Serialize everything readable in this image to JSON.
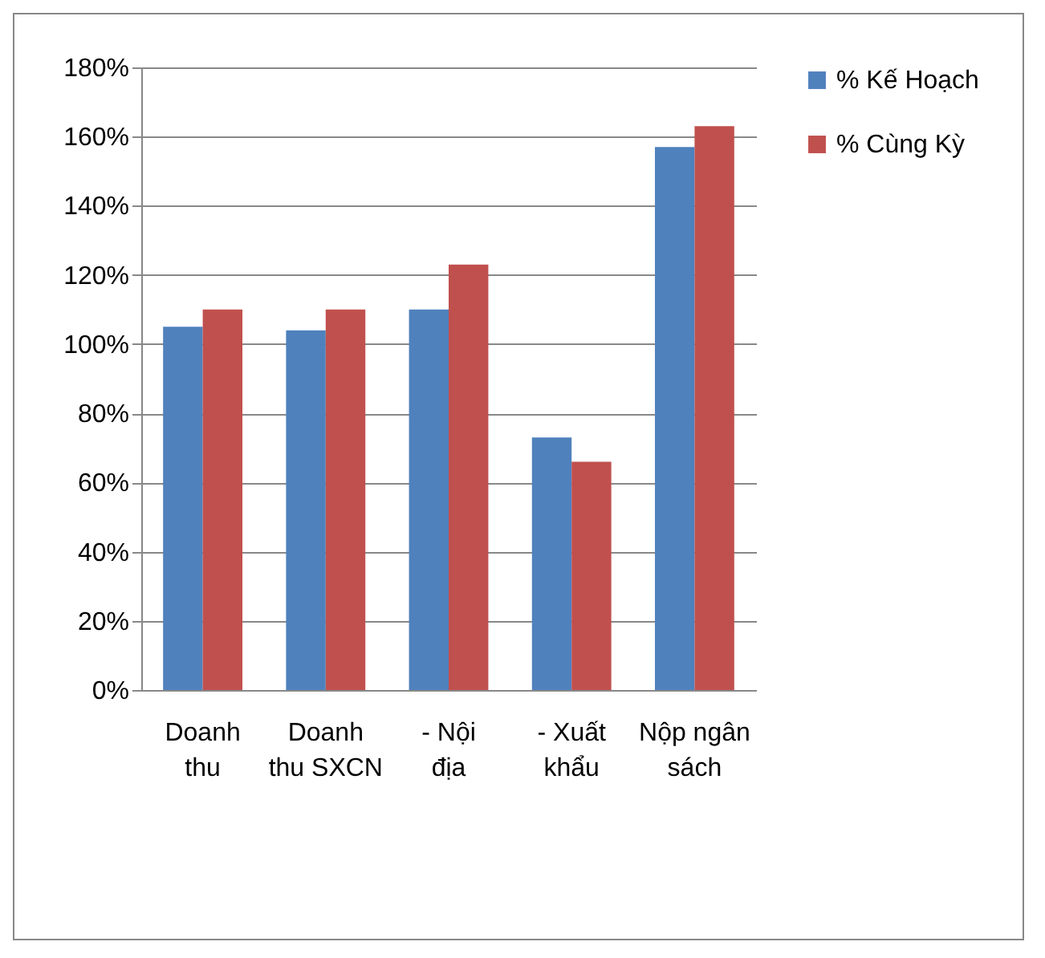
{
  "chart_data": {
    "type": "bar",
    "categories": [
      "Doanh thu",
      "Doanh thu SXCN",
      "- Nội địa",
      "- Xuất khẩu",
      "Nộp ngân sách"
    ],
    "series": [
      {
        "name": "% Kế Hoạch",
        "color": "#4f81bd",
        "values": [
          105,
          104,
          110,
          73,
          157
        ]
      },
      {
        "name": "% Cùng Kỳ",
        "color": "#c0504d",
        "values": [
          110,
          110,
          123,
          66,
          163
        ]
      }
    ],
    "ylim": [
      0,
      180
    ],
    "yticks": [
      {
        "value": 0,
        "label": "0%"
      },
      {
        "value": 20,
        "label": "20%"
      },
      {
        "value": 40,
        "label": "40%"
      },
      {
        "value": 60,
        "label": "60%"
      },
      {
        "value": 80,
        "label": "80%"
      },
      {
        "value": 100,
        "label": "100%"
      },
      {
        "value": 120,
        "label": "120%"
      },
      {
        "value": 140,
        "label": "140%"
      },
      {
        "value": 160,
        "label": "160%"
      },
      {
        "value": 180,
        "label": "180%"
      }
    ],
    "grid": "y",
    "legend": "right"
  }
}
